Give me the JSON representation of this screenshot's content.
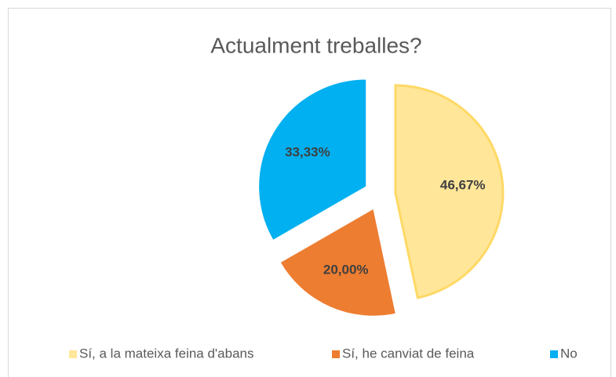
{
  "chart_data": {
    "type": "pie",
    "title": "Actualment treballes?",
    "categories": [
      "Sí, a la mateixa feina d'abans",
      "Sí, he canviat de feina",
      "No"
    ],
    "values": [
      46.67,
      20.0,
      33.33
    ],
    "value_labels": [
      "46,67%",
      "20,00%",
      "33,33%"
    ],
    "colors": [
      "#FFE699",
      "#ED7D31",
      "#00B0F0"
    ],
    "legend": "bottom"
  }
}
